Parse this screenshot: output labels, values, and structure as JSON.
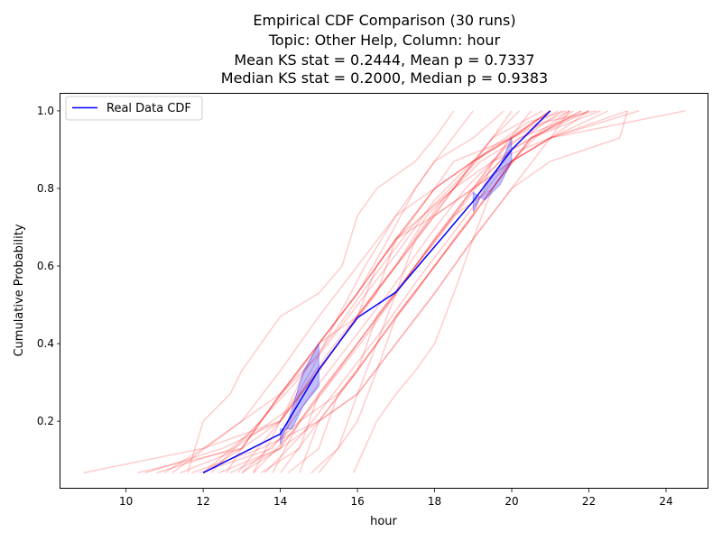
{
  "chart_data": {
    "type": "line",
    "title_lines": [
      "Empirical CDF Comparison (30 runs)",
      "Topic: Other Help, Column: hour",
      "Mean KS stat = 0.2444, Mean p = 0.7337",
      "Median KS stat = 0.2000, Median p = 0.9383"
    ],
    "xlabel": "hour",
    "ylabel": "Cumulative Probability",
    "xlim": [
      8.3,
      25.1
    ],
    "ylim": [
      0.026,
      1.044
    ],
    "xticks": [
      10,
      12,
      14,
      16,
      18,
      20,
      22,
      24
    ],
    "yticks": [
      0.2,
      0.4,
      0.6,
      0.8,
      1.0
    ],
    "xtick_labels": [
      "10",
      "12",
      "14",
      "16",
      "18",
      "20",
      "22",
      "24"
    ],
    "ytick_labels": [
      "0.2",
      "0.4",
      "0.6",
      "0.8",
      "1.0"
    ],
    "legend": {
      "position": "upper-left",
      "entries": [
        {
          "label": "Real Data CDF",
          "color": "#0000ff"
        }
      ]
    },
    "real_cdf": {
      "name": "Real Data CDF",
      "color": "#0000ff",
      "points": [
        [
          12.0,
          0.067
        ],
        [
          14.0,
          0.167
        ],
        [
          15.0,
          0.333
        ],
        [
          16.0,
          0.467
        ],
        [
          17.0,
          0.533
        ],
        [
          19.0,
          0.767
        ],
        [
          20.0,
          0.9
        ],
        [
          21.0,
          1.0
        ]
      ]
    },
    "bands": [
      {
        "color": "#0000ff",
        "polygon": [
          [
            14.0,
            0.14
          ],
          [
            14.3,
            0.23
          ],
          [
            14.6,
            0.33
          ],
          [
            15.0,
            0.4
          ],
          [
            15.0,
            0.29
          ],
          [
            14.6,
            0.24
          ],
          [
            14.3,
            0.18
          ],
          [
            14.0,
            0.18
          ]
        ]
      },
      {
        "color": "#0000ff",
        "polygon": [
          [
            19.0,
            0.74
          ],
          [
            19.3,
            0.8
          ],
          [
            19.7,
            0.86
          ],
          [
            20.0,
            0.93
          ],
          [
            20.0,
            0.87
          ],
          [
            19.7,
            0.81
          ],
          [
            19.3,
            0.77
          ],
          [
            19.0,
            0.79
          ]
        ]
      }
    ],
    "simulated_runs_color": "#ff0000",
    "simulated_runs": [
      [
        [
          8.9,
          0.067
        ],
        [
          12.0,
          0.13
        ],
        [
          14.0,
          0.2
        ],
        [
          15.0,
          0.33
        ],
        [
          16.0,
          0.47
        ],
        [
          17.0,
          0.6
        ],
        [
          18.0,
          0.73
        ],
        [
          19.0,
          0.8
        ],
        [
          20.0,
          0.87
        ],
        [
          21.0,
          0.93
        ],
        [
          23.3,
          1.0
        ]
      ],
      [
        [
          10.3,
          0.067
        ],
        [
          13.0,
          0.13
        ],
        [
          14.0,
          0.27
        ],
        [
          15.0,
          0.4
        ],
        [
          16.0,
          0.53
        ],
        [
          17.0,
          0.67
        ],
        [
          18.5,
          0.8
        ],
        [
          19.5,
          0.87
        ],
        [
          21.0,
          0.93
        ],
        [
          24.5,
          1.0
        ]
      ],
      [
        [
          11.6,
          0.067
        ],
        [
          12.0,
          0.2
        ],
        [
          12.7,
          0.27
        ],
        [
          13.0,
          0.33
        ],
        [
          13.5,
          0.4
        ],
        [
          14.0,
          0.47
        ],
        [
          15.0,
          0.53
        ],
        [
          15.6,
          0.6
        ],
        [
          16.0,
          0.73
        ],
        [
          16.5,
          0.8
        ],
        [
          17.5,
          0.87
        ],
        [
          18.0,
          0.93
        ],
        [
          18.5,
          1.0
        ]
      ],
      [
        [
          12.4,
          0.067
        ],
        [
          14.0,
          0.13
        ],
        [
          15.0,
          0.2
        ],
        [
          16.0,
          0.33
        ],
        [
          17.0,
          0.47
        ],
        [
          18.0,
          0.6
        ],
        [
          19.0,
          0.73
        ],
        [
          20.0,
          0.87
        ],
        [
          21.0,
          0.93
        ],
        [
          22.0,
          1.0
        ]
      ],
      [
        [
          13.3,
          0.067
        ],
        [
          14.0,
          0.2
        ],
        [
          15.0,
          0.4
        ],
        [
          16.0,
          0.53
        ],
        [
          17.0,
          0.67
        ],
        [
          18.0,
          0.8
        ],
        [
          19.0,
          0.87
        ],
        [
          19.5,
          0.93
        ],
        [
          20.0,
          1.0
        ]
      ],
      [
        [
          14.5,
          0.067
        ],
        [
          15.0,
          0.2
        ],
        [
          16.0,
          0.27
        ],
        [
          17.0,
          0.4
        ],
        [
          18.0,
          0.53
        ],
        [
          19.0,
          0.67
        ],
        [
          20.0,
          0.8
        ],
        [
          21.0,
          0.93
        ],
        [
          21.5,
          1.0
        ]
      ],
      [
        [
          11.2,
          0.067
        ],
        [
          13.0,
          0.2
        ],
        [
          14.0,
          0.33
        ],
        [
          15.0,
          0.47
        ],
        [
          16.0,
          0.6
        ],
        [
          17.0,
          0.73
        ],
        [
          18.0,
          0.87
        ],
        [
          19.0,
          1.0
        ]
      ],
      [
        [
          12.7,
          0.067
        ],
        [
          14.0,
          0.13
        ],
        [
          15.0,
          0.27
        ],
        [
          16.0,
          0.4
        ],
        [
          17.0,
          0.53
        ],
        [
          18.0,
          0.67
        ],
        [
          19.0,
          0.8
        ],
        [
          20.0,
          0.87
        ],
        [
          21.0,
          0.93
        ],
        [
          23.0,
          1.0
        ]
      ],
      [
        [
          10.5,
          0.067
        ],
        [
          12.5,
          0.13
        ],
        [
          14.0,
          0.2
        ],
        [
          15.0,
          0.33
        ],
        [
          16.0,
          0.47
        ],
        [
          16.5,
          0.6
        ],
        [
          17.5,
          0.73
        ],
        [
          18.5,
          0.87
        ],
        [
          20.0,
          0.93
        ],
        [
          21.5,
          1.0
        ]
      ],
      [
        [
          13.8,
          0.067
        ],
        [
          14.5,
          0.2
        ],
        [
          15.5,
          0.33
        ],
        [
          16.5,
          0.47
        ],
        [
          17.5,
          0.6
        ],
        [
          18.5,
          0.73
        ],
        [
          19.5,
          0.87
        ],
        [
          20.5,
          1.0
        ]
      ],
      [
        [
          15.9,
          0.067
        ],
        [
          16.5,
          0.2
        ],
        [
          17.0,
          0.27
        ],
        [
          17.5,
          0.33
        ],
        [
          18.0,
          0.4
        ],
        [
          18.5,
          0.53
        ],
        [
          19.0,
          0.67
        ],
        [
          19.5,
          0.8
        ],
        [
          20.0,
          0.87
        ],
        [
          20.5,
          0.93
        ],
        [
          22.0,
          1.0
        ]
      ],
      [
        [
          14.8,
          0.067
        ],
        [
          15.5,
          0.13
        ],
        [
          16.0,
          0.27
        ],
        [
          16.5,
          0.4
        ],
        [
          17.0,
          0.53
        ],
        [
          18.0,
          0.67
        ],
        [
          19.0,
          0.8
        ],
        [
          20.0,
          0.93
        ],
        [
          21.0,
          1.0
        ]
      ],
      [
        [
          12.0,
          0.067
        ],
        [
          13.0,
          0.13
        ],
        [
          14.0,
          0.27
        ],
        [
          15.0,
          0.4
        ],
        [
          16.0,
          0.53
        ],
        [
          16.8,
          0.67
        ],
        [
          17.5,
          0.8
        ],
        [
          18.0,
          0.87
        ],
        [
          19.0,
          0.93
        ],
        [
          19.8,
          1.0
        ]
      ],
      [
        [
          11.7,
          0.067
        ],
        [
          13.5,
          0.13
        ],
        [
          15.0,
          0.2
        ],
        [
          16.0,
          0.27
        ],
        [
          17.0,
          0.4
        ],
        [
          18.0,
          0.53
        ],
        [
          19.0,
          0.67
        ],
        [
          20.0,
          0.8
        ],
        [
          21.0,
          0.87
        ],
        [
          22.8,
          0.93
        ],
        [
          23.0,
          1.0
        ]
      ],
      [
        [
          13.0,
          0.067
        ],
        [
          14.0,
          0.13
        ],
        [
          14.5,
          0.27
        ],
        [
          15.5,
          0.4
        ],
        [
          16.5,
          0.53
        ],
        [
          17.0,
          0.67
        ],
        [
          18.0,
          0.8
        ],
        [
          19.0,
          0.87
        ],
        [
          20.0,
          0.93
        ],
        [
          21.0,
          1.0
        ]
      ],
      [
        [
          12.2,
          0.067
        ],
        [
          13.5,
          0.2
        ],
        [
          14.5,
          0.33
        ],
        [
          15.0,
          0.4
        ],
        [
          16.0,
          0.47
        ],
        [
          17.0,
          0.6
        ],
        [
          18.0,
          0.73
        ],
        [
          19.0,
          0.8
        ],
        [
          20.0,
          0.9
        ],
        [
          21.8,
          1.0
        ]
      ],
      [
        [
          14.2,
          0.067
        ],
        [
          15.0,
          0.13
        ],
        [
          15.5,
          0.27
        ],
        [
          16.5,
          0.4
        ],
        [
          17.5,
          0.53
        ],
        [
          18.5,
          0.67
        ],
        [
          19.5,
          0.8
        ],
        [
          20.5,
          0.93
        ],
        [
          22.3,
          1.0
        ]
      ],
      [
        [
          13.5,
          0.067
        ],
        [
          14.5,
          0.13
        ],
        [
          15.0,
          0.27
        ],
        [
          16.0,
          0.4
        ],
        [
          17.0,
          0.53
        ],
        [
          17.5,
          0.67
        ],
        [
          18.5,
          0.8
        ],
        [
          19.5,
          0.93
        ],
        [
          20.2,
          1.0
        ]
      ],
      [
        [
          11.0,
          0.067
        ],
        [
          12.0,
          0.13
        ],
        [
          13.0,
          0.2
        ],
        [
          14.0,
          0.27
        ],
        [
          15.0,
          0.4
        ],
        [
          16.0,
          0.53
        ],
        [
          17.0,
          0.67
        ],
        [
          18.0,
          0.73
        ],
        [
          19.0,
          0.87
        ],
        [
          21.0,
          1.0
        ]
      ],
      [
        [
          12.9,
          0.067
        ],
        [
          14.0,
          0.2
        ],
        [
          14.8,
          0.33
        ],
        [
          15.5,
          0.47
        ],
        [
          16.2,
          0.6
        ],
        [
          17.0,
          0.73
        ],
        [
          18.0,
          0.8
        ],
        [
          19.0,
          0.87
        ],
        [
          20.0,
          0.93
        ],
        [
          21.2,
          1.0
        ]
      ],
      [
        [
          13.0,
          0.067
        ],
        [
          14.5,
          0.2
        ],
        [
          15.5,
          0.27
        ],
        [
          16.0,
          0.33
        ],
        [
          17.0,
          0.47
        ],
        [
          18.0,
          0.6
        ],
        [
          19.0,
          0.73
        ],
        [
          20.0,
          0.87
        ],
        [
          21.0,
          0.93
        ],
        [
          22.5,
          1.0
        ]
      ],
      [
        [
          11.4,
          0.067
        ],
        [
          13.0,
          0.13
        ],
        [
          14.0,
          0.2
        ],
        [
          15.0,
          0.33
        ],
        [
          16.0,
          0.47
        ],
        [
          17.0,
          0.6
        ],
        [
          17.8,
          0.73
        ],
        [
          18.5,
          0.8
        ],
        [
          19.5,
          0.93
        ],
        [
          20.8,
          1.0
        ]
      ],
      [
        [
          14.0,
          0.067
        ],
        [
          15.0,
          0.2
        ],
        [
          16.0,
          0.33
        ],
        [
          16.5,
          0.47
        ],
        [
          17.5,
          0.6
        ],
        [
          18.5,
          0.73
        ],
        [
          19.5,
          0.8
        ],
        [
          20.5,
          0.93
        ],
        [
          21.5,
          1.0
        ]
      ],
      [
        [
          12.6,
          0.067
        ],
        [
          13.0,
          0.13
        ],
        [
          14.0,
          0.27
        ],
        [
          15.0,
          0.37
        ],
        [
          16.0,
          0.5
        ],
        [
          17.0,
          0.63
        ],
        [
          18.0,
          0.77
        ],
        [
          19.0,
          0.87
        ],
        [
          20.0,
          0.93
        ],
        [
          21.0,
          1.0
        ]
      ],
      [
        [
          10.8,
          0.067
        ],
        [
          12.8,
          0.13
        ],
        [
          14.2,
          0.23
        ],
        [
          15.2,
          0.37
        ],
        [
          16.2,
          0.5
        ],
        [
          17.2,
          0.63
        ],
        [
          18.2,
          0.77
        ],
        [
          19.2,
          0.87
        ],
        [
          20.2,
          0.93
        ],
        [
          22.0,
          1.0
        ]
      ],
      [
        [
          13.3,
          0.067
        ],
        [
          14.3,
          0.17
        ],
        [
          15.3,
          0.3
        ],
        [
          16.3,
          0.43
        ],
        [
          17.3,
          0.57
        ],
        [
          18.3,
          0.7
        ],
        [
          19.3,
          0.83
        ],
        [
          20.3,
          0.93
        ],
        [
          21.3,
          1.0
        ]
      ],
      [
        [
          15.0,
          0.067
        ],
        [
          15.5,
          0.13
        ],
        [
          16.0,
          0.2
        ],
        [
          16.5,
          0.33
        ],
        [
          17.0,
          0.47
        ],
        [
          18.0,
          0.6
        ],
        [
          19.0,
          0.73
        ],
        [
          19.5,
          0.87
        ],
        [
          20.5,
          0.93
        ],
        [
          21.8,
          1.0
        ]
      ],
      [
        [
          12.0,
          0.067
        ],
        [
          13.2,
          0.17
        ],
        [
          14.4,
          0.3
        ],
        [
          15.4,
          0.43
        ],
        [
          16.4,
          0.57
        ],
        [
          17.4,
          0.7
        ],
        [
          18.4,
          0.8
        ],
        [
          19.4,
          0.9
        ],
        [
          20.4,
          0.97
        ],
        [
          21.4,
          1.0
        ]
      ],
      [
        [
          11.9,
          0.067
        ],
        [
          13.8,
          0.13
        ],
        [
          14.8,
          0.27
        ],
        [
          15.8,
          0.4
        ],
        [
          16.8,
          0.53
        ],
        [
          17.8,
          0.67
        ],
        [
          18.8,
          0.8
        ],
        [
          19.8,
          0.9
        ],
        [
          20.8,
          0.97
        ],
        [
          22.2,
          1.0
        ]
      ],
      [
        [
          13.6,
          0.067
        ],
        [
          14.6,
          0.17
        ],
        [
          15.6,
          0.3
        ],
        [
          16.6,
          0.43
        ],
        [
          17.6,
          0.57
        ],
        [
          18.6,
          0.7
        ],
        [
          19.6,
          0.83
        ],
        [
          20.6,
          0.93
        ],
        [
          21.6,
          1.0
        ]
      ]
    ]
  }
}
